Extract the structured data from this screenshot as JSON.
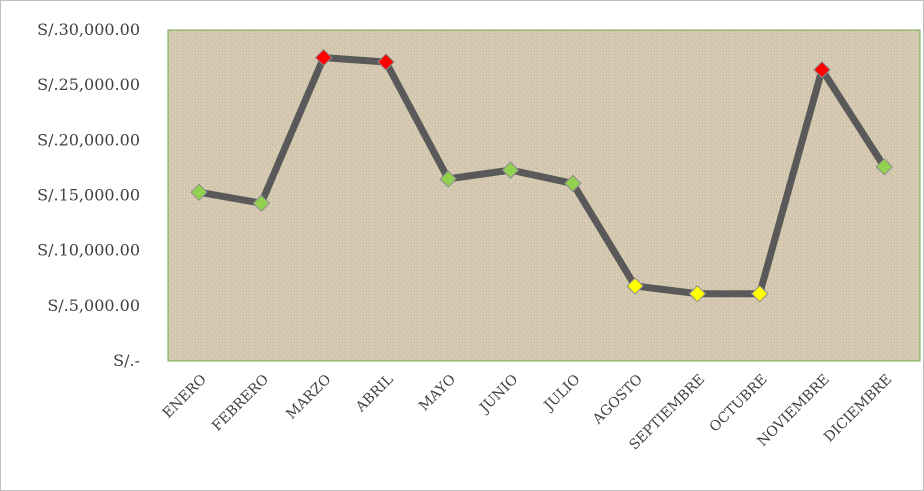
{
  "chart_data": {
    "type": "line",
    "title": "",
    "xlabel": "",
    "ylabel": "",
    "categories": [
      "ENERO",
      "FEBRERO",
      "MARZO",
      "ABRIL",
      "MAYO",
      "JUNIO",
      "JULIO",
      "AGOSTO",
      "SEPTIEMBRE",
      "OCTUBRE",
      "NOVIEMBRE",
      "DICIEMBRE"
    ],
    "values": [
      15300,
      14300,
      27500,
      27100,
      16500,
      17300,
      16100,
      6800,
      6100,
      6100,
      26400,
      17600
    ],
    "marker_status": [
      "green",
      "green",
      "red",
      "red",
      "green",
      "green",
      "green",
      "yellow",
      "yellow",
      "yellow",
      "red",
      "green"
    ],
    "ylim": [
      0,
      30000
    ],
    "yticks": [
      {
        "value": 30000,
        "label": "S/.30,000.00"
      },
      {
        "value": 25000,
        "label": "S/.25,000.00"
      },
      {
        "value": 20000,
        "label": "S/.20,000.00"
      },
      {
        "value": 15000,
        "label": "S/.15,000.00"
      },
      {
        "value": 10000,
        "label": "S/.10,000.00"
      },
      {
        "value": 5000,
        "label": "S/.5,000.00"
      },
      {
        "value": 0,
        "label": "S/.-"
      }
    ],
    "grid": false,
    "legend": "none"
  },
  "colors": {
    "line": "#595959",
    "red": "#ff0000",
    "green": "#92d050",
    "yellow": "#ffff00",
    "plot_border": "#70ad47",
    "plot_fill": "#d3c6ae"
  }
}
